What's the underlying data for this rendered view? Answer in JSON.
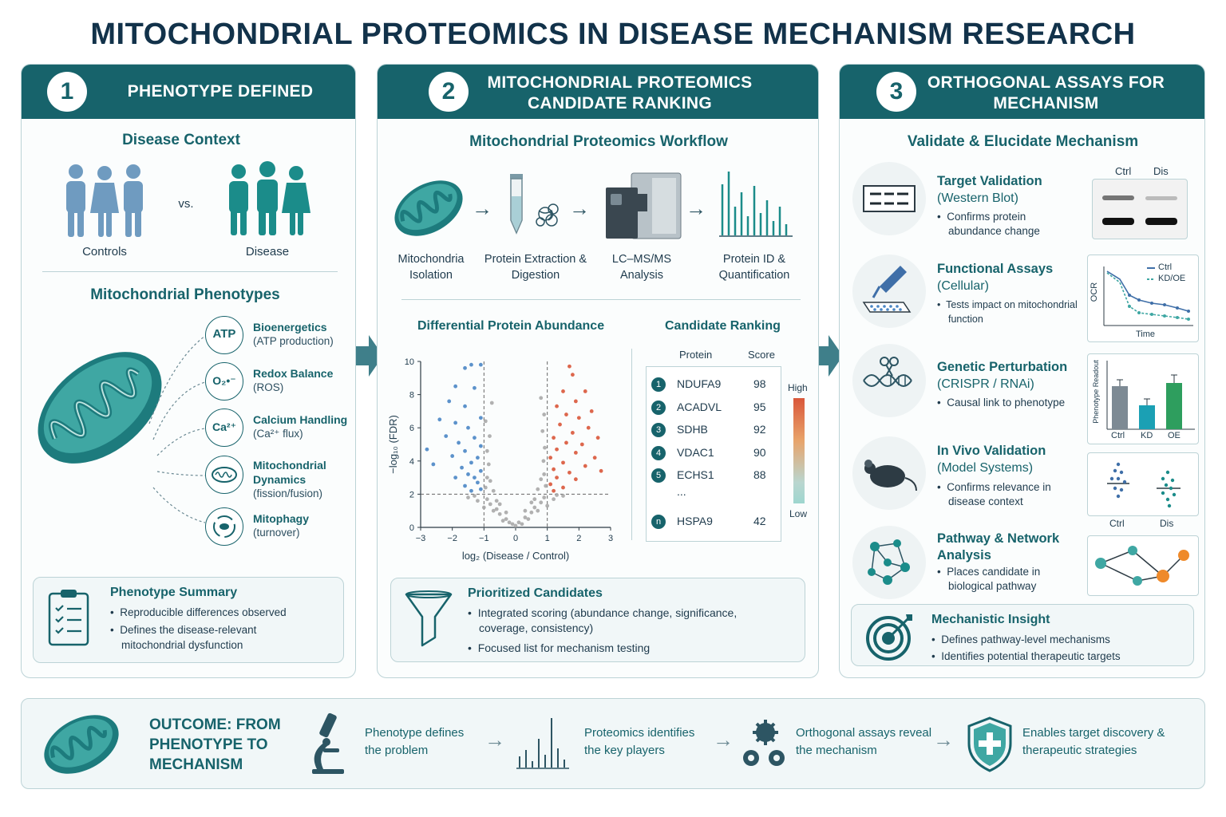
{
  "title": "MITOCHONDRIAL PROTEOMICS IN DISEASE MECHANISM RESEARCH",
  "colors": {
    "teal": "#17636b",
    "blue": "#4a86c5",
    "red": "#d9573a",
    "gray": "#a8a8a8",
    "green": "#2e9e5e"
  },
  "panel1": {
    "num": "1",
    "title": "PHENOTYPE DEFINED",
    "context_title": "Disease Context",
    "vs": "vs.",
    "controls": "Controls",
    "disease": "Disease",
    "phenotypes_title": "Mitochondrial Phenotypes",
    "phenotypes": [
      {
        "icon": "ATP",
        "icon_name": "atp-icon",
        "title": "Bioenergetics",
        "sub": "(ATP production)"
      },
      {
        "icon": "O₂•⁻",
        "icon_name": "superoxide-icon",
        "title": "Redox Balance",
        "sub": "(ROS)"
      },
      {
        "icon": "Ca²⁺",
        "icon_name": "calcium-icon",
        "title": "Calcium Handling",
        "sub": "(Ca²⁺ flux)"
      },
      {
        "icon": "",
        "icon_name": "mitochondrion-dynamics-icon",
        "title": "Mitochondrial Dynamics",
        "sub": "(fission/fusion)"
      },
      {
        "icon": "",
        "icon_name": "mitophagy-icon",
        "title": "Mitophagy",
        "sub": "(turnover)"
      }
    ],
    "summary_title": "Phenotype Summary",
    "summary_bullets": [
      "Reproducible differences observed",
      "Defines the disease-relevant mitochondrial dysfunction"
    ]
  },
  "panel2": {
    "num": "2",
    "title": "MITOCHONDRIAL PROTEOMICS CANDIDATE RANKING",
    "workflow_title": "Mitochondrial Proteomics Workflow",
    "steps": [
      "Mitochondria Isolation",
      "Protein Extraction & Digestion",
      "LC–MS/MS Analysis",
      "Protein ID & Quantification"
    ],
    "volcano_title": "Differential Protein Abundance",
    "volcano_ylabel": "−log₁₀ (FDR)",
    "volcano_xlabel": "log₂ (Disease / Control)",
    "ranking_title": "Candidate Ranking",
    "ranking_headers": [
      "Protein",
      "Score"
    ],
    "ranking": [
      {
        "rank": "1",
        "protein": "NDUFA9",
        "score": "98"
      },
      {
        "rank": "2",
        "protein": "ACADVL",
        "score": "95"
      },
      {
        "rank": "3",
        "protein": "SDHB",
        "score": "92"
      },
      {
        "rank": "4",
        "protein": "VDAC1",
        "score": "90"
      },
      {
        "rank": "5",
        "protein": "ECHS1",
        "score": "88"
      }
    ],
    "ranking_ellipsis": "...",
    "ranking_last": {
      "rank": "n",
      "protein": "HSPA9",
      "score": "42"
    },
    "scale_high": "High",
    "scale_low": "Low",
    "prioritized_title": "Prioritized Candidates",
    "prioritized_bullets": [
      "Integrated scoring (abundance change, significance, coverage, consistency)",
      "Focused list for mechanism testing"
    ]
  },
  "chart_data": {
    "type": "scatter",
    "title": "Differential Protein Abundance",
    "xlabel": "log₂ (Disease / Control)",
    "ylabel": "−log₁₀ (FDR)",
    "xlim": [
      -3,
      3
    ],
    "ylim": [
      0,
      10
    ],
    "xticks": [
      "−3",
      "−2",
      "−1",
      "0",
      "1",
      "2",
      "3"
    ],
    "yticks": [
      "0",
      "2",
      "4",
      "6",
      "8",
      "10"
    ],
    "thresholds": {
      "x": [
        -1,
        1
      ],
      "y": 2
    },
    "series": [
      {
        "color": "#4a86c5",
        "points": [
          [
            -1.4,
            9.8
          ],
          [
            -1.1,
            9.8
          ],
          [
            -1.6,
            9.6
          ],
          [
            -1.9,
            8.5
          ],
          [
            -1.3,
            8.4
          ],
          [
            -2.1,
            7.6
          ],
          [
            -1.6,
            7.3
          ],
          [
            -2.4,
            6.5
          ],
          [
            -1.9,
            6.3
          ],
          [
            -1.1,
            6.6
          ],
          [
            -1.5,
            6.0
          ],
          [
            -2.2,
            5.5
          ],
          [
            -1.3,
            5.4
          ],
          [
            -1.8,
            5.1
          ],
          [
            -1.1,
            4.9
          ],
          [
            -1.6,
            4.6
          ],
          [
            -2.0,
            4.3
          ],
          [
            -1.2,
            4.2
          ],
          [
            -1.4,
            3.9
          ],
          [
            -2.6,
            3.8
          ],
          [
            -1.7,
            3.6
          ],
          [
            -1.1,
            3.4
          ],
          [
            -1.5,
            3.2
          ],
          [
            -1.3,
            3.0
          ],
          [
            -1.9,
            3.0
          ],
          [
            -1.2,
            2.7
          ],
          [
            -1.6,
            2.5
          ],
          [
            -1.1,
            2.3
          ],
          [
            -1.4,
            2.2
          ],
          [
            -2.8,
            4.7
          ]
        ]
      },
      {
        "color": "#d9573a",
        "points": [
          [
            1.7,
            9.7
          ],
          [
            1.8,
            9.2
          ],
          [
            1.5,
            8.2
          ],
          [
            2.2,
            8.2
          ],
          [
            1.9,
            7.6
          ],
          [
            1.3,
            7.3
          ],
          [
            2.4,
            7.0
          ],
          [
            1.6,
            6.8
          ],
          [
            2.0,
            6.6
          ],
          [
            1.4,
            6.2
          ],
          [
            2.3,
            6.0
          ],
          [
            1.8,
            5.7
          ],
          [
            1.2,
            5.4
          ],
          [
            2.6,
            5.4
          ],
          [
            1.6,
            5.1
          ],
          [
            2.1,
            5.0
          ],
          [
            1.3,
            4.7
          ],
          [
            1.9,
            4.5
          ],
          [
            2.5,
            4.2
          ],
          [
            1.1,
            4.2
          ],
          [
            1.5,
            3.9
          ],
          [
            2.2,
            3.7
          ],
          [
            1.2,
            3.5
          ],
          [
            1.7,
            3.3
          ],
          [
            2.7,
            3.4
          ],
          [
            1.3,
            3.0
          ],
          [
            1.9,
            2.9
          ],
          [
            1.1,
            2.6
          ],
          [
            1.5,
            2.4
          ],
          [
            1.2,
            2.2
          ]
        ]
      },
      {
        "color": "#a8a8a8",
        "points": [
          [
            -0.1,
            0.2
          ],
          [
            0.1,
            0.3
          ],
          [
            -0.3,
            0.5
          ],
          [
            0.3,
            0.6
          ],
          [
            -0.5,
            0.8
          ],
          [
            0.5,
            0.9
          ],
          [
            -0.6,
            1.1
          ],
          [
            0.6,
            1.2
          ],
          [
            -0.8,
            1.4
          ],
          [
            0.8,
            1.5
          ],
          [
            -0.9,
            1.7
          ],
          [
            0.9,
            1.8
          ],
          [
            -0.7,
            1.0
          ],
          [
            0.7,
            1.0
          ],
          [
            -0.4,
            0.4
          ],
          [
            0.4,
            0.5
          ],
          [
            -0.2,
            0.3
          ],
          [
            0.2,
            0.2
          ],
          [
            0.0,
            0.1
          ],
          [
            -0.95,
            2.4
          ],
          [
            0.95,
            2.5
          ],
          [
            -0.9,
            3.0
          ],
          [
            0.9,
            3.2
          ],
          [
            -0.85,
            3.8
          ],
          [
            0.88,
            4.0
          ],
          [
            -0.9,
            4.6
          ],
          [
            0.92,
            4.8
          ],
          [
            -0.82,
            5.5
          ],
          [
            0.85,
            5.8
          ],
          [
            -0.95,
            6.4
          ],
          [
            0.9,
            6.8
          ],
          [
            -0.75,
            7.5
          ],
          [
            0.8,
            7.8
          ],
          [
            -0.6,
            1.6
          ],
          [
            0.6,
            1.7
          ],
          [
            -1.2,
            1.6
          ],
          [
            1.2,
            1.7
          ],
          [
            -1.5,
            1.8
          ],
          [
            1.5,
            1.9
          ],
          [
            -0.3,
            0.9
          ],
          [
            0.3,
            1.0
          ],
          [
            -0.5,
            1.4
          ],
          [
            0.5,
            1.5
          ],
          [
            -1.0,
            1.2
          ],
          [
            1.0,
            1.3
          ],
          [
            -0.7,
            2.2
          ],
          [
            0.7,
            2.3
          ],
          [
            -0.8,
            2.8
          ],
          [
            0.8,
            2.9
          ],
          [
            -1.3,
            1.9
          ],
          [
            1.3,
            1.95
          ]
        ]
      }
    ]
  },
  "panel3": {
    "num": "3",
    "title": "ORTHOGONAL ASSAYS FOR MECHANISM",
    "subtitle": "Validate & Elucidate Mechanism",
    "assays": [
      {
        "icon_name": "western-blot-icon",
        "title": "Target Validation",
        "sub": "(Western Blot)",
        "bullet": "Confirms protein abundance change"
      },
      {
        "icon_name": "pipette-icon",
        "title": "Functional Assays",
        "sub": "(Cellular)",
        "bullet": "Tests impact on mitochondrial function"
      },
      {
        "icon_name": "crispr-icon",
        "title": "Genetic Perturbation",
        "sub": "(CRISPR / RNAi)",
        "bullet": "Causal link to phenotype"
      },
      {
        "icon_name": "mouse-icon",
        "title": "In Vivo Validation",
        "sub": "(Model Systems)",
        "bullet": "Confirms relevance in disease context"
      },
      {
        "icon_name": "network-icon",
        "title": "Pathway & Network",
        "sub": "Analysis",
        "bullet": "Places candidate in biological pathway"
      }
    ],
    "blot_labels": [
      "Ctrl",
      "Dis"
    ],
    "ocr_ylabel": "OCR",
    "ocr_xlabel": "Time",
    "ocr_legend": [
      "Ctrl",
      "KD/OE"
    ],
    "bar_ylabel": "Phenotype Readout",
    "bar_labels": [
      "Ctrl",
      "KD",
      "OE"
    ],
    "invivo_labels": [
      "Ctrl",
      "Dis"
    ],
    "insight_title": "Mechanistic Insight",
    "insight_bullets": [
      "Defines pathway-level mechanisms",
      "Identifies potential therapeutic targets"
    ]
  },
  "outcome": {
    "title": "OUTCOME: FROM PHENOTYPE TO MECHANISM",
    "steps": [
      {
        "icon_name": "microscope-icon",
        "text": "Phenotype defines the problem"
      },
      {
        "icon_name": "bar-chart-icon",
        "text": "Proteomics identifies the key players"
      },
      {
        "icon_name": "gears-icon",
        "text": "Orthogonal assays reveal the mechanism"
      },
      {
        "icon_name": "shield-plus-icon",
        "text": "Enables target discovery & therapeutic strategies"
      }
    ]
  }
}
